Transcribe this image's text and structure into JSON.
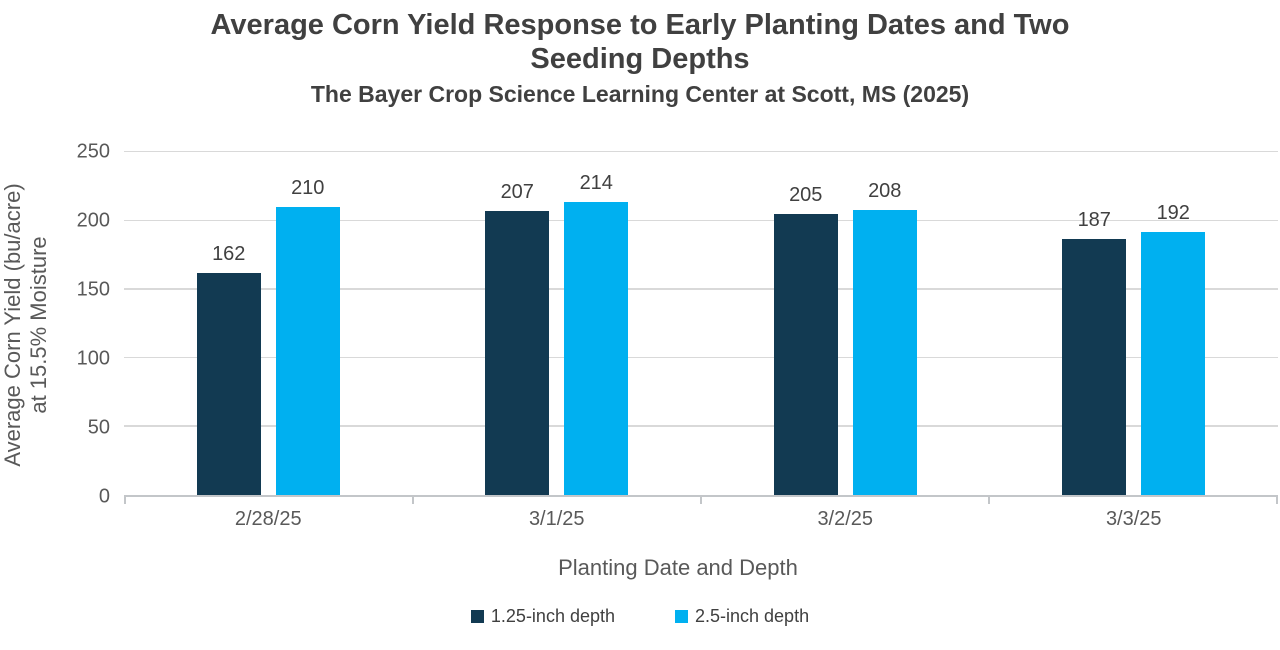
{
  "header": {
    "title_line1": "Average Corn Yield Response to Early Planting Dates and Two",
    "title_line2": "Seeding Depths",
    "subtitle": "The Bayer Crop Science Learning Center at Scott, MS (2025)"
  },
  "chart_data": {
    "type": "bar",
    "title": "Average Corn Yield Response to Early Planting Dates and Two Seeding Depths",
    "subtitle": "The Bayer Crop Science Learning Center at Scott, MS (2025)",
    "categories": [
      "2/28/25",
      "3/1/25",
      "3/2/25",
      "3/3/25"
    ],
    "series": [
      {
        "name": "1.25-inch depth",
        "color": "#123A52",
        "values": [
          162,
          207,
          205,
          187
        ]
      },
      {
        "name": "2.5-inch depth",
        "color": "#00B0F0",
        "values": [
          210,
          214,
          208,
          192
        ]
      }
    ],
    "xlabel": "Planting Date and Depth",
    "ylabel": "Average Corn Yield (bu/acre)\nat 15.5% Moisture",
    "ylim": [
      0,
      250
    ],
    "yticks": [
      0,
      50,
      100,
      150,
      200,
      250
    ],
    "grid": true,
    "gridline_color": "#D9D9D9",
    "axis_line_color": "#C3C6C9",
    "title_text_color": "#404040",
    "axis_text_color": "#595959",
    "data_labels_shown": true,
    "legend_position": "bottom"
  }
}
